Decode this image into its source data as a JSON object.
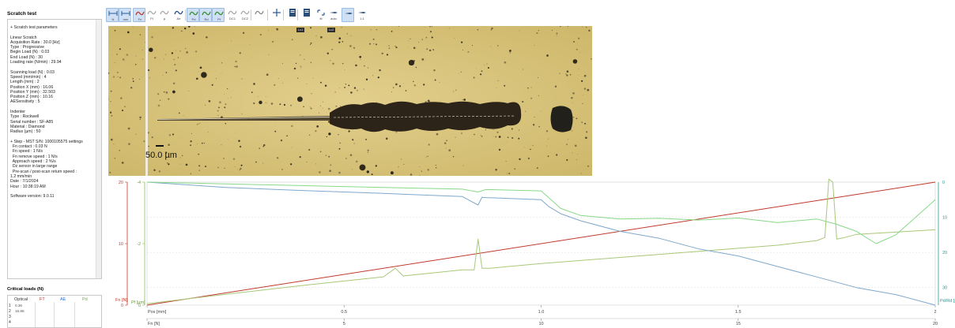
{
  "left_panel": {
    "title": "Scratch test",
    "lines": [
      "+ Scratch test parameters",
      "",
      "Linear Scratch",
      "Acquisition Rate : 30.0 [Hz]",
      "Type : Progressive",
      "Begin Load (N) : 0.03",
      "End Load (N) : 30",
      "Loading rate (N/min) : 29.94",
      "",
      "Scanning load (N) : 0.03",
      "Speed (mm/min) : 4",
      "Length (mm) : 2",
      "Position X (mm) : 16.06",
      "Position Y (mm) : 32.503",
      "Position Z (mm) : 10.16",
      "AESensitivity : 5",
      "",
      "Indenter",
      "Type : Rockwell",
      "Serial number : SF-A85",
      "Material : Diamond",
      "Radius (µm) : 50",
      "",
      "+ Step - MST S/N: 1000105575 settings",
      "  Fn contact : 0.03 N",
      "  Fn speed : 1 N/s",
      "  Fn remove speed : 1 N/s",
      "  Approach speed : 2 %/s",
      "  Dz sensor in large range",
      "  Pre-scan / post-scan return speed :",
      "1.2 mm/min",
      "Date : 7/1/2024",
      "Hour : 10:38:19 AM",
      "",
      "Software version: 9.0.11"
    ]
  },
  "critical_loads": {
    "title": "Critical loads (N)",
    "headers": [
      "Optical",
      "FT",
      "AE",
      "Pd"
    ],
    "header_colors": [
      "#333333",
      "#c0392b",
      "#2a6fd6",
      "#7aa060"
    ],
    "rows": [
      {
        "num": "1",
        "optical": "0.36"
      },
      {
        "num": "2",
        "optical": "16.86"
      },
      {
        "num": "3",
        "optical": ""
      },
      {
        "num": "4",
        "optical": ""
      }
    ]
  },
  "toolbar": {
    "buttons": [
      {
        "icon": "width-fn-icon",
        "label": "N",
        "on": true
      },
      {
        "icon": "width-mm-icon",
        "label": "mm",
        "on": true
      },
      {
        "icon": "curve-fn-icon",
        "label": "Fn",
        "on": true,
        "color": "#c0392b"
      },
      {
        "icon": "curve-ft-icon",
        "label": "Ft",
        "on": false,
        "color": "#aaaaaa"
      },
      {
        "icon": "curve-mu-icon",
        "label": "µ",
        "on": false,
        "color": "#aaaaaa"
      },
      {
        "icon": "curve-ae-icon",
        "label": "Ae",
        "on": false,
        "color": "#2a4f8a"
      },
      {
        "icon": "curve-pd-icon",
        "label": "Pd",
        "on": true,
        "color": "#3a8f3a"
      },
      {
        "icon": "curve-rd-icon",
        "label": "Rd",
        "on": true,
        "color": "#3a8f3a"
      },
      {
        "icon": "curve-pf-icon",
        "label": "Pf",
        "on": true,
        "color": "#3a8f3a"
      },
      {
        "icon": "curve-dc1-icon",
        "label": "DC1",
        "on": false,
        "color": "#aaaaaa"
      },
      {
        "icon": "curve-dc2-icon",
        "label": "DC2",
        "on": false,
        "color": "#aaaaaa"
      },
      {
        "icon": "curve-filter-icon",
        "label": "",
        "on": false,
        "color": "#888888"
      },
      {
        "icon": "move-icon",
        "label": "",
        "on": false
      },
      {
        "icon": "export-icon",
        "label": "",
        "on": false
      },
      {
        "icon": "report-icon",
        "label": "",
        "on": false
      },
      {
        "icon": "fit-icon",
        "label": "fit",
        "on": false
      },
      {
        "icon": "auto-icon",
        "label": "auto",
        "on": false
      },
      {
        "icon": "pin-icon",
        "label": "",
        "on": true
      },
      {
        "icon": "zoom-1-icon",
        "label": "1:1",
        "on": false
      }
    ]
  },
  "micrograph": {
    "tags": [
      "Lc1",
      "Lc2"
    ],
    "scale_label": "50.0 µm"
  },
  "chart_data": {
    "type": "line",
    "x_axis_top": {
      "label": "Pos [mm]",
      "ticks": [
        "0",
        "0.5",
        "1.0",
        "1.5",
        "2"
      ]
    },
    "x_axis_bottom": {
      "label": "Fn [N]",
      "ticks": [
        "0",
        "5",
        "10",
        "15",
        "20"
      ]
    },
    "y_axis_fn": {
      "label": "Fn [N]",
      "ticks": [
        "0",
        "10",
        "20"
      ],
      "ylim": [
        0,
        20
      ]
    },
    "y_axis_pf": {
      "label": "Pf [µm]",
      "ticks": [
        "0",
        "-2",
        "-4"
      ],
      "ylim": [
        0,
        -4
      ]
    },
    "y_axis_right": {
      "label": "Pd/Rd [µm]",
      "ticks": [
        "0",
        "10",
        "20",
        "30"
      ],
      "ylim": [
        0,
        35
      ]
    },
    "series": [
      {
        "color": "#c0392b",
        "axis": "fn",
        "x": [
          0,
          2.0
        ],
        "y": [
          0,
          20
        ]
      },
      {
        "color": "#a8c878",
        "axis": "pf",
        "x": [
          0,
          0.2,
          0.4,
          0.55,
          0.6,
          0.63,
          0.65,
          0.8,
          0.83,
          0.84,
          0.85,
          0.87,
          1.0,
          1.2,
          1.4,
          1.6,
          1.7,
          1.72,
          1.73,
          1.74,
          1.75,
          1.77,
          1.8,
          2.0
        ],
        "y": [
          -0.05,
          -0.35,
          -0.65,
          -0.85,
          -0.92,
          -1.2,
          -0.95,
          -1.15,
          -1.15,
          -2.15,
          -1.2,
          -1.2,
          -1.35,
          -1.55,
          -1.75,
          -1.95,
          -2.1,
          -2.2,
          -4.1,
          -4.0,
          -2.15,
          -2.2,
          -2.3,
          -2.45
        ]
      },
      {
        "color": "#7fa8cc",
        "axis": "right",
        "x": [
          0,
          0.2,
          0.4,
          0.6,
          0.8,
          0.84,
          0.85,
          0.86,
          1.0,
          1.02,
          1.05,
          1.1,
          1.2,
          1.3,
          1.4,
          1.5,
          1.6,
          1.7,
          1.8,
          1.9,
          2.0
        ],
        "y": [
          0,
          1.5,
          2.4,
          3.2,
          4.1,
          6.5,
          4.3,
          4.4,
          5.0,
          7.0,
          9.0,
          11.0,
          14.0,
          16.0,
          19.0,
          21.0,
          24.0,
          27.0,
          30.0,
          32.0,
          35.0
        ]
      },
      {
        "color": "#88d888",
        "axis": "right",
        "x": [
          0,
          0.2,
          0.4,
          0.6,
          0.8,
          0.84,
          0.86,
          1.0,
          1.02,
          1.05,
          1.1,
          1.2,
          1.3,
          1.4,
          1.5,
          1.6,
          1.7,
          1.75,
          1.8,
          1.85,
          1.9,
          1.95,
          2.0
        ],
        "y": [
          0,
          0.5,
          1.0,
          1.5,
          2.0,
          2.8,
          2.1,
          2.5,
          4.5,
          7.5,
          9.5,
          10.5,
          10.3,
          10.8,
          10.2,
          11.5,
          10.5,
          12.0,
          14.0,
          17.5,
          15.0,
          10.0,
          5.0
        ]
      }
    ],
    "marker_peaks": [
      {
        "x": 1.73,
        "axis": "right"
      }
    ]
  }
}
